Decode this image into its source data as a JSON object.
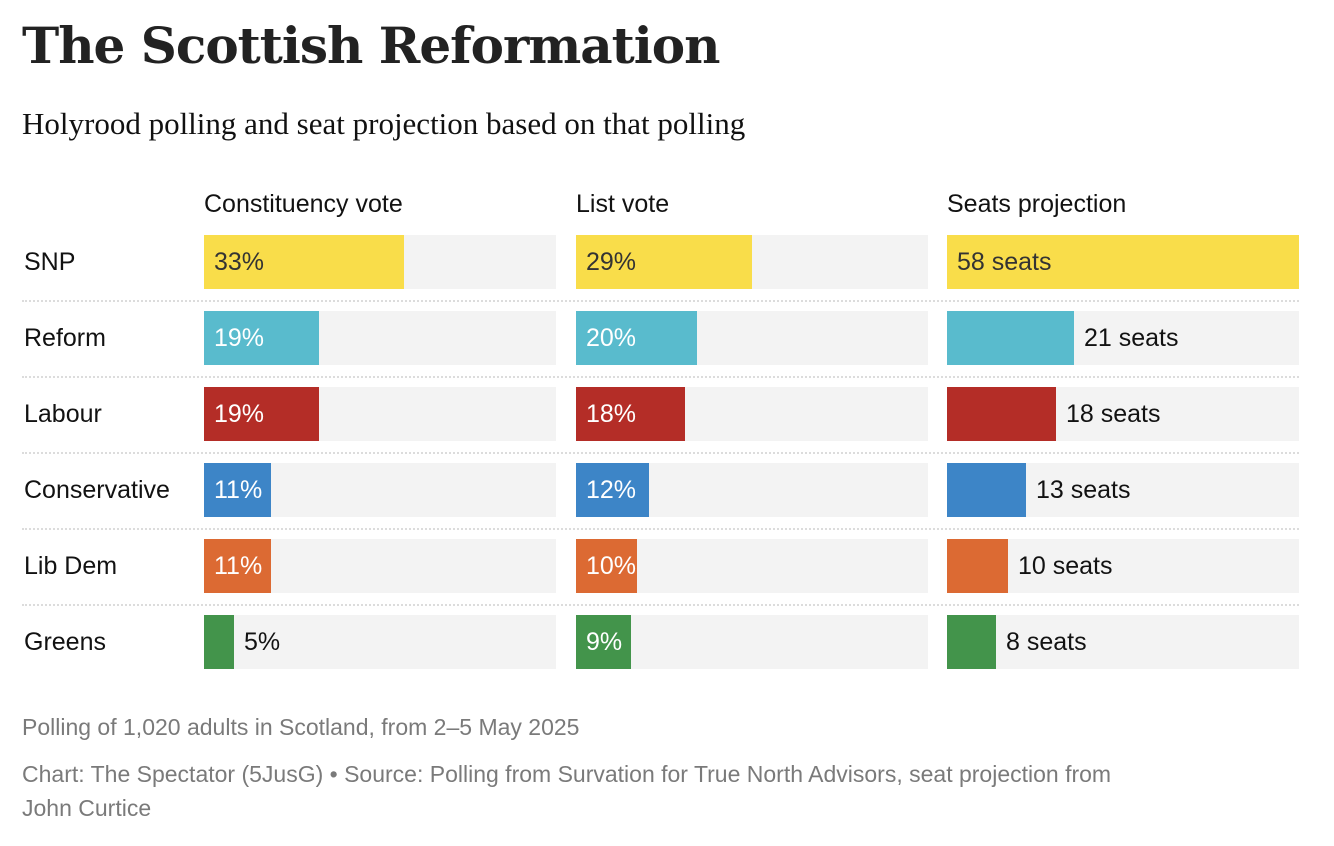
{
  "title": "The Scottish Reformation",
  "subtitle": "Holyrood polling and seat projection based on that polling",
  "notes": "Polling of 1,020 adults in Scotland, from 2–5 May 2025",
  "source_line1": "Chart: The Spectator (5JusG) • Source: Polling from Survation for True North Advisors, seat projection from",
  "source_line2": "John Curtice",
  "chart_data": {
    "type": "bar",
    "orientation": "horizontal",
    "title": "The Scottish Reformation",
    "subtitle": "Holyrood polling and seat projection based on that polling",
    "categories": [
      "SNP",
      "Reform",
      "Labour",
      "Conservative",
      "Lib Dem",
      "Greens"
    ],
    "colors": [
      "#f9dd4a",
      "#59bbcd",
      "#b42d27",
      "#3d85c7",
      "#dc6a33",
      "#43944b"
    ],
    "track_color": "#f3f3f3",
    "xlim": [
      0,
      58
    ],
    "series": [
      {
        "name": "Constituency vote",
        "unit": "%",
        "values": [
          33,
          19,
          19,
          11,
          11,
          5
        ],
        "labels": [
          "33%",
          "19%",
          "19%",
          "11%",
          "11%",
          "5%"
        ]
      },
      {
        "name": "List vote",
        "unit": "%",
        "values": [
          29,
          20,
          18,
          12,
          10,
          9
        ],
        "labels": [
          "29%",
          "20%",
          "18%",
          "12%",
          "10%",
          "9%"
        ]
      },
      {
        "name": "Seats projection",
        "unit": "seats",
        "values": [
          58,
          21,
          18,
          13,
          10,
          8
        ],
        "labels": [
          "58 seats",
          "21 seats",
          "18 seats",
          "13 seats",
          "10 seats",
          "8 seats"
        ]
      }
    ],
    "label_text_colors": {
      "inside_light": "#ffffff",
      "inside_dark": "#333333",
      "outside": "#121212"
    },
    "grid": false,
    "legend": "none"
  }
}
